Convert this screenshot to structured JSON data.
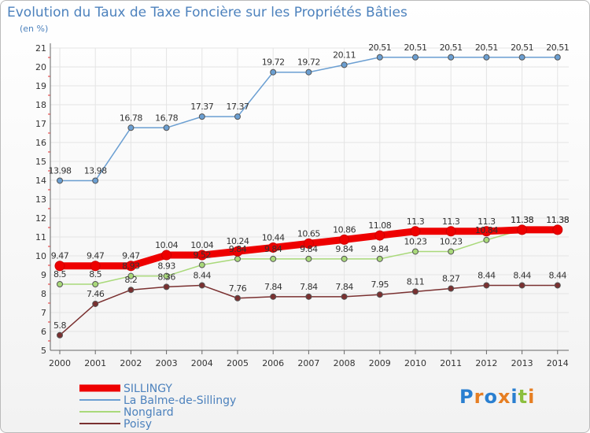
{
  "header": {
    "title": "Evolution du Taux de Taxe Foncière sur les Propriétés Bâties",
    "subtitle": "(en %)"
  },
  "logo": {
    "text": "Proxiti",
    "letters": [
      "P",
      "r",
      "o",
      "x",
      "i",
      "t",
      "i"
    ],
    "colors": [
      "#2a7fd0",
      "#e67e22",
      "#2a7fd0",
      "#e67e22",
      "#2a7fd0",
      "#8cbf3f",
      "#e67e22"
    ]
  },
  "chart_data": {
    "type": "line",
    "title": "Evolution du Taux de Taxe Foncière sur les Propriétés Bâties",
    "ylabel": "(en %)",
    "xlabel": "",
    "ylim": [
      5,
      21
    ],
    "yticks": [
      5,
      6,
      7,
      8,
      9,
      10,
      11,
      12,
      13,
      14,
      15,
      16,
      17,
      18,
      19,
      20,
      21
    ],
    "categories": [
      "2000",
      "2001",
      "2002",
      "2003",
      "2004",
      "2005",
      "2006",
      "2007",
      "2008",
      "2009",
      "2010",
      "2011",
      "2012",
      "2013",
      "2014"
    ],
    "legend_position": "bottom-left",
    "series": [
      {
        "name": "SILLINGY",
        "color": "#ee0000",
        "values": [
          9.47,
          9.47,
          9.47,
          10.04,
          10.04,
          10.24,
          10.44,
          10.65,
          10.86,
          11.08,
          11.3,
          11.3,
          11.3,
          11.38,
          11.38
        ],
        "labels": [
          "9.47",
          "9.47",
          "9.47",
          "10.04",
          "10.04",
          "10.24",
          "10.44",
          "10.65",
          "10.86",
          "11.08",
          "11.3",
          "11.3",
          "11.3",
          "11.38",
          "11.38"
        ]
      },
      {
        "name": "La Balme-de-Sillingy",
        "color": "#6b9fd2",
        "values": [
          13.98,
          13.98,
          16.78,
          16.78,
          17.37,
          17.37,
          19.72,
          19.72,
          20.11,
          20.51,
          20.51,
          20.51,
          20.51,
          20.51,
          20.51
        ],
        "labels": [
          "13.98",
          "13.98",
          "16.78",
          "16.78",
          "17.37",
          "17.37",
          "19.72",
          "19.72",
          "20.11",
          "20.51",
          "20.51",
          "20.51",
          "20.51",
          "20.51",
          "20.51"
        ]
      },
      {
        "name": "Nonglard",
        "color": "#a9d97a",
        "values": [
          8.5,
          8.5,
          8.93,
          8.93,
          9.52,
          9.84,
          9.84,
          9.84,
          9.84,
          9.84,
          10.23,
          10.23,
          10.84,
          11.38,
          11.38
        ],
        "labels": [
          "8.5",
          "8.5",
          "8.93",
          "8.93",
          "9.52",
          "9.84",
          "9.84",
          "9.84",
          "9.84",
          "9.84",
          "10.23",
          "10.23",
          "10.84",
          "11.38",
          "11.38"
        ]
      },
      {
        "name": "Poisy",
        "color": "#7a3030",
        "values": [
          5.8,
          7.46,
          8.2,
          8.36,
          8.44,
          7.76,
          7.84,
          7.84,
          7.84,
          7.95,
          8.11,
          8.27,
          8.44,
          8.44,
          8.44
        ],
        "labels": [
          "5.8",
          "7.46",
          "8.2",
          "8.36",
          "8.44",
          "7.76",
          "7.84",
          "7.84",
          "7.84",
          "7.95",
          "8.11",
          "8.27",
          "8.44",
          "8.44",
          "8.44"
        ]
      }
    ]
  }
}
